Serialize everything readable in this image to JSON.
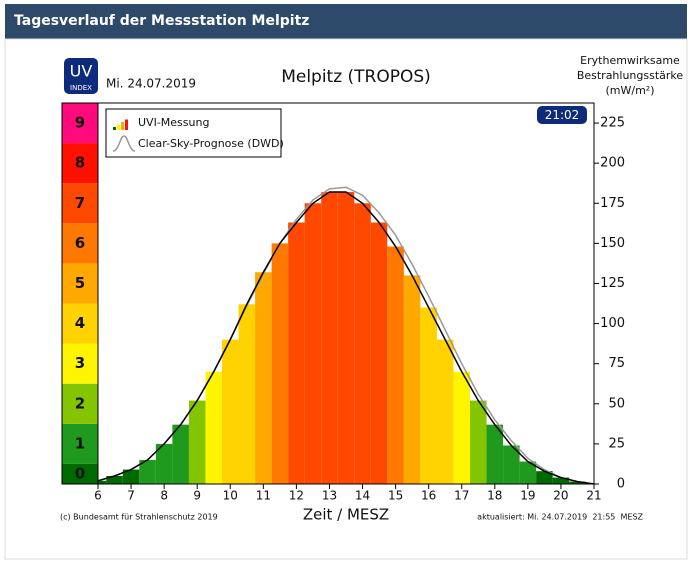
{
  "header": {
    "title": "Tagesverlauf der Messstation Melpitz"
  },
  "chart_data": {
    "type": "bar",
    "title": "Melpitz (TROPOS)",
    "date": "Mi. 24.07.2019",
    "logo": [
      "UV",
      "INDEX"
    ],
    "y_label": [
      "Erythemwirksame",
      "Bestrahlungsstärke",
      "(mW/m²)"
    ],
    "time_badge": "21:02",
    "x_label": "Zeit / MESZ",
    "copyright": "(c) Bundesamt für Strahlenschutz 2019",
    "updated": "aktualisiert: Mi. 24.07.2019  21:55  MESZ",
    "x": [
      6,
      6.5,
      7,
      7.5,
      8,
      8.5,
      9,
      9.5,
      10,
      10.5,
      11,
      11.5,
      12,
      12.5,
      13,
      13.5,
      14,
      14.5,
      15,
      15.5,
      16,
      16.5,
      17,
      17.5,
      18,
      18.5,
      19,
      19.5,
      20,
      20.5,
      21
    ],
    "series": [
      {
        "name": "UVI-Messung",
        "values": [
          2,
          5,
          9,
          15,
          25,
          37,
          52,
          70,
          90,
          112,
          132,
          150,
          163,
          175,
          182,
          182,
          175,
          163,
          148,
          130,
          110,
          90,
          70,
          52,
          37,
          24,
          14,
          8,
          4,
          1.5,
          0
        ]
      },
      {
        "name": "Clear-Sky-Prognose (DWD)",
        "color": "#999999",
        "values": [
          2,
          5,
          9,
          15,
          25,
          37,
          52,
          70,
          90,
          111,
          131,
          150,
          165,
          177,
          184,
          185,
          180,
          169,
          155,
          137,
          117,
          96,
          75,
          56,
          40,
          27,
          16,
          9,
          4,
          1.5,
          0
        ]
      }
    ],
    "levels": [
      0,
      1,
      2,
      3,
      4,
      5,
      6,
      7,
      8,
      9
    ],
    "level_colors": [
      "#006a00",
      "#1f9a1f",
      "#84c400",
      "#fff500",
      "#ffd200",
      "#ffa800",
      "#ff7800",
      "#ff4800",
      "#ff1000",
      "#ff0a7a"
    ],
    "level_step": 25,
    "xlim": [
      6,
      21
    ],
    "xticks": [
      6,
      7,
      8,
      9,
      10,
      11,
      12,
      13,
      14,
      15,
      16,
      17,
      18,
      19,
      20,
      21
    ],
    "ylim": [
      0,
      237.5
    ],
    "yticks": [
      0,
      25,
      50,
      75,
      100,
      125,
      150,
      175,
      200,
      225
    ]
  }
}
